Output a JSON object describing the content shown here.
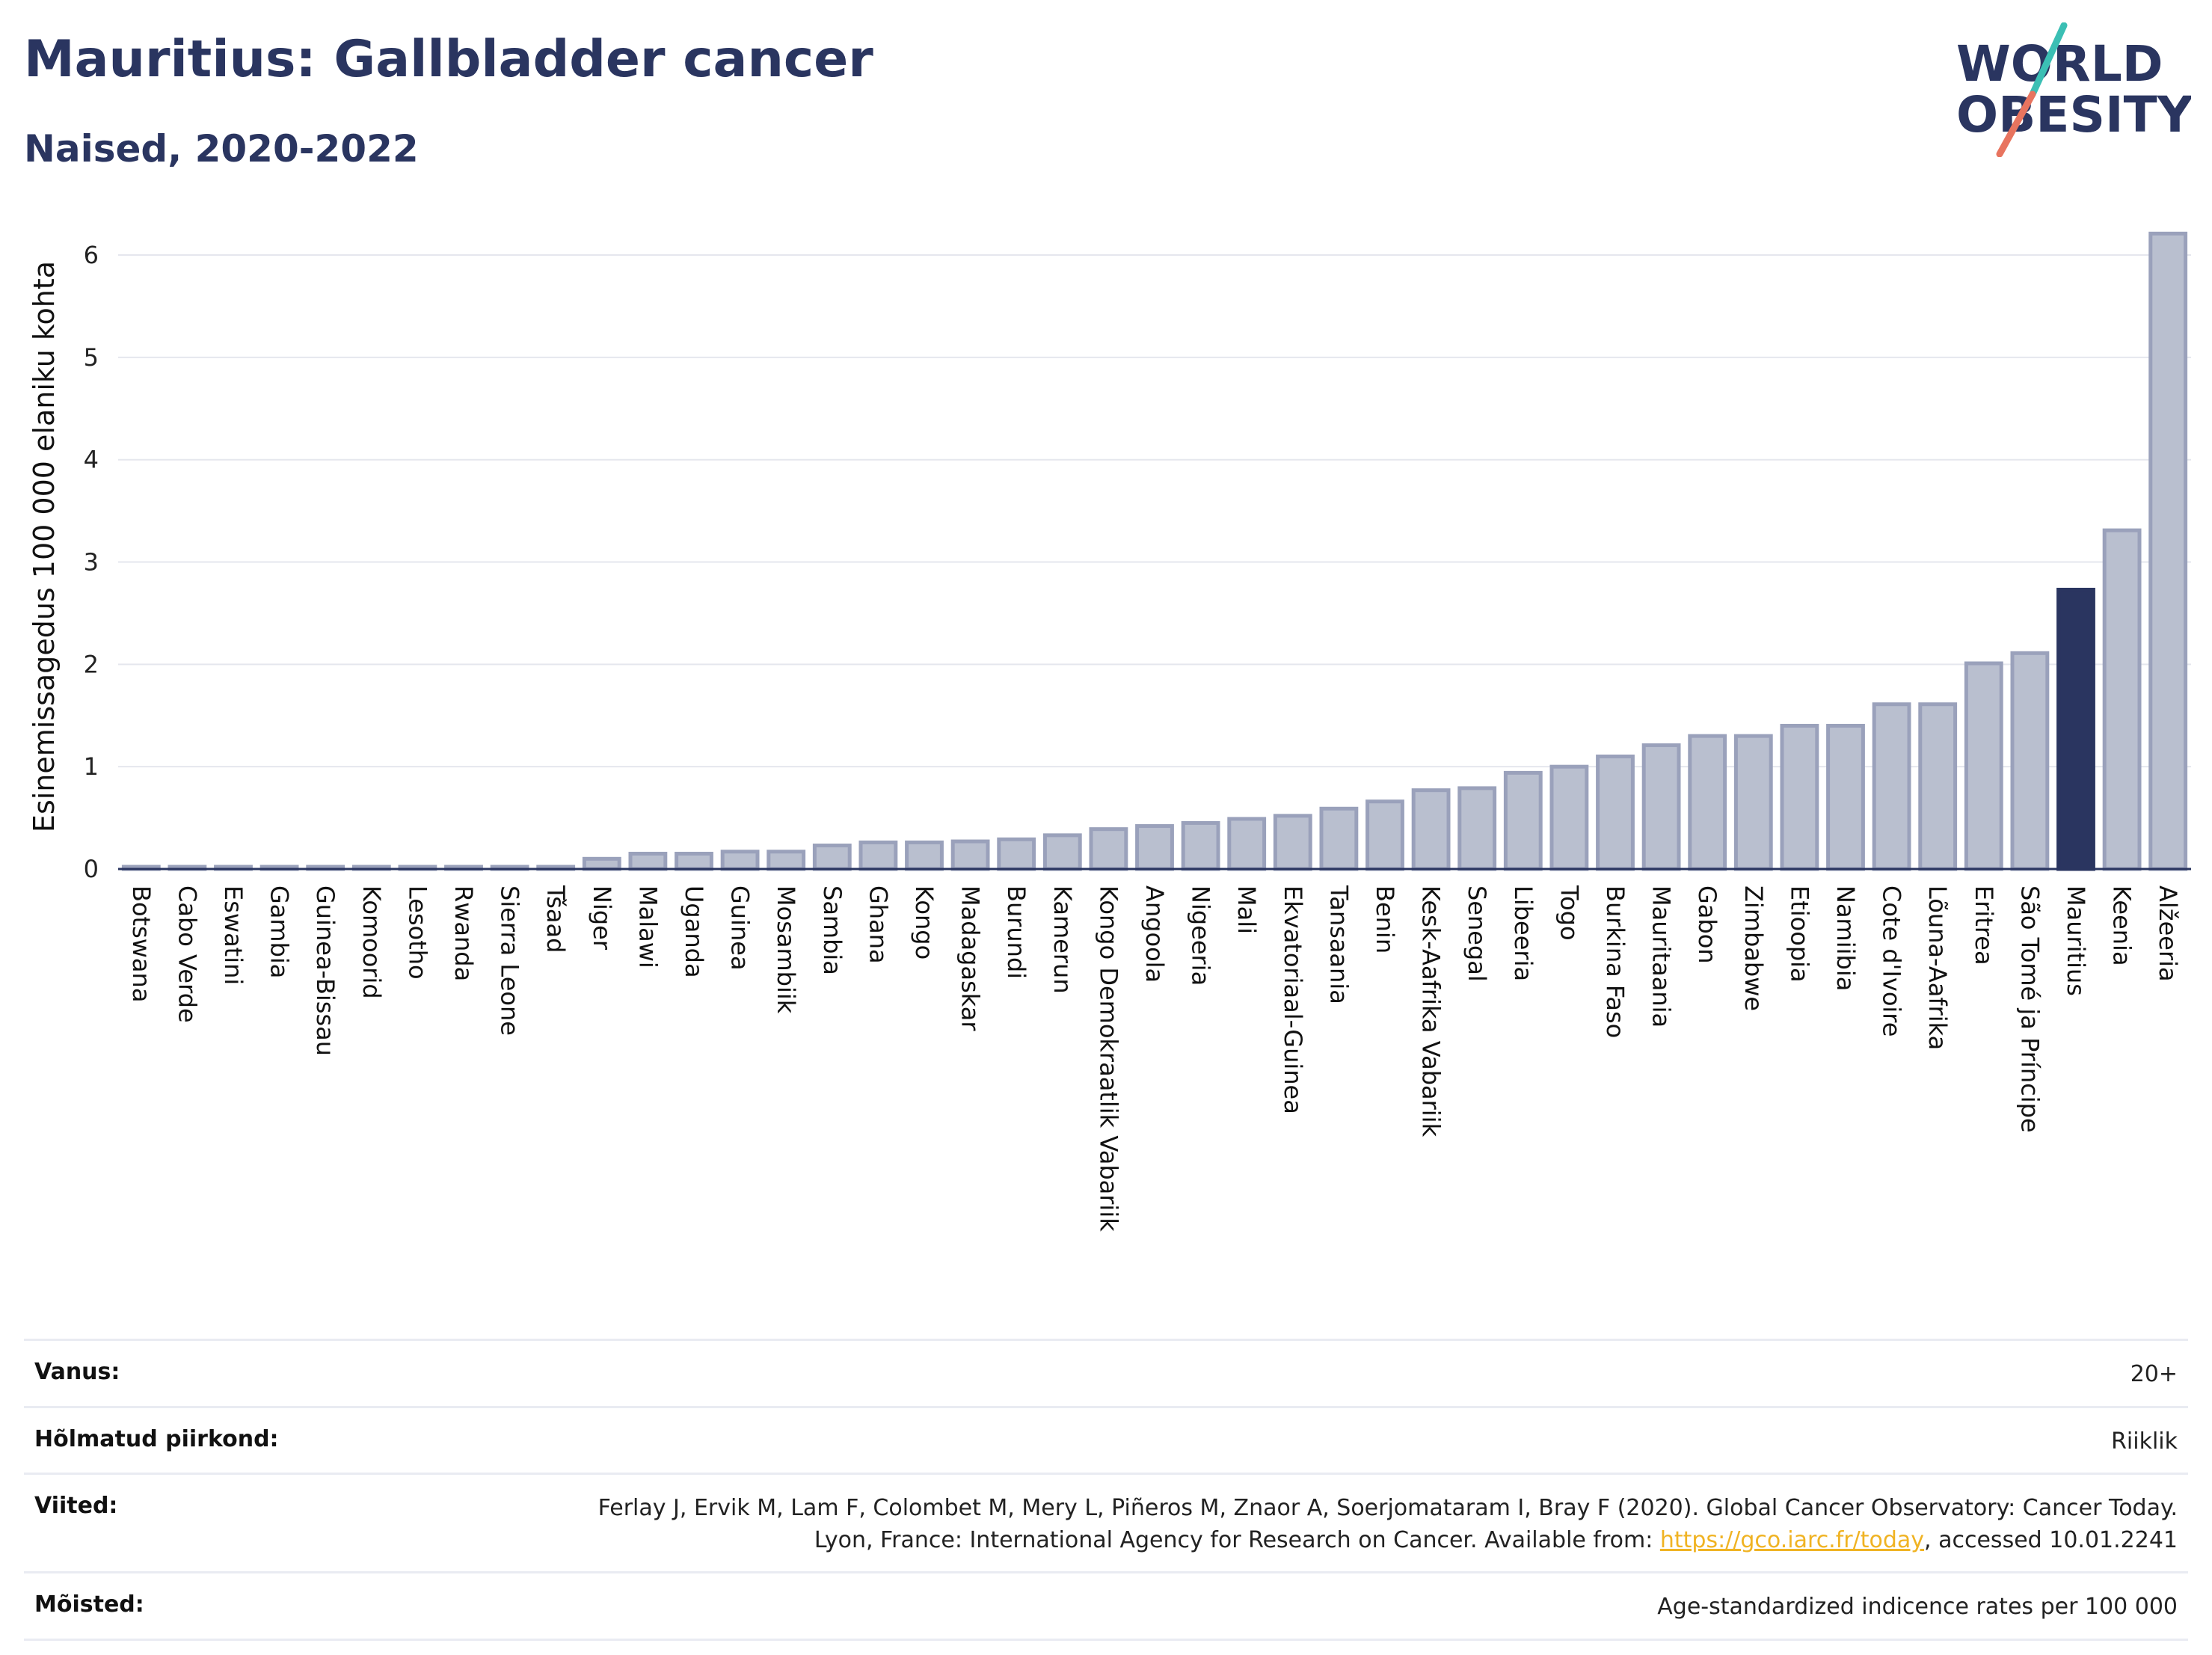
{
  "header": {
    "title": "Mauritius: Gallbladder cancer",
    "subtitle": "Naised, 2020-2022"
  },
  "logo": {
    "line1": "WORLD",
    "line2": "OBESITY",
    "colors": {
      "text": "#2a3560",
      "slash_top": "#3bbfb4",
      "slash_bottom": "#e8745f"
    }
  },
  "colors": {
    "bar_fill": "#b9bfcf",
    "bar_stroke": "#9aa1bb",
    "highlight": "#2a3560",
    "grid": "#e5e7ee",
    "axis": "#2a3560"
  },
  "chart_data": {
    "type": "bar",
    "ylabel": "Esinemissagedus 100 000 elaniku kohta",
    "xlabel": "",
    "ylim": [
      0,
      6.3
    ],
    "yticks": [
      0,
      1,
      2,
      3,
      4,
      5,
      6
    ],
    "grid": true,
    "highlight": "Mauritius",
    "categories": [
      "Botswana",
      "Cabo Verde",
      "Eswatini",
      "Gambia",
      "Guinea-Bissau",
      "Komoorid",
      "Lesotho",
      "Rwanda",
      "Sierra Leone",
      "Tšaad",
      "Niger",
      "Malawi",
      "Uganda",
      "Guinea",
      "Mosambiik",
      "Sambia",
      "Ghana",
      "Kongo",
      "Madagaskar",
      "Burundi",
      "Kamerun",
      "Kongo Demokraatlik Vabariik",
      "Angoola",
      "Nigeeria",
      "Mali",
      "Ekvatoriaal-Guinea",
      "Tansaania",
      "Benin",
      "Kesk-Aafrika Vabariik",
      "Senegal",
      "Libeeria",
      "Togo",
      "Burkina Faso",
      "Mauritaania",
      "Gabon",
      "Zimbabwe",
      "Etioopia",
      "Namiibia",
      "Cote d'Ivoire",
      "Lõuna-Aafrika",
      "Eritrea",
      "São Tomé ja Príncipe",
      "Mauritius",
      "Keenia",
      "Alžeeria"
    ],
    "values": [
      0.01,
      0.01,
      0.01,
      0.01,
      0.01,
      0.01,
      0.01,
      0.01,
      0.01,
      0.01,
      0.1,
      0.15,
      0.15,
      0.17,
      0.17,
      0.23,
      0.26,
      0.26,
      0.27,
      0.29,
      0.33,
      0.39,
      0.42,
      0.45,
      0.49,
      0.52,
      0.59,
      0.66,
      0.77,
      0.79,
      0.94,
      1.0,
      1.1,
      1.21,
      1.3,
      1.3,
      1.4,
      1.4,
      1.61,
      1.61,
      2.01,
      2.11,
      2.73,
      3.31,
      6.21
    ]
  },
  "info": {
    "age": {
      "label": "Vanus:",
      "value": "20+"
    },
    "regions": {
      "label": "Hõlmatud piirkond:",
      "value": "Riiklik"
    },
    "refs": {
      "label": "Viited:",
      "text_before": "Ferlay J, Ervik M, Lam F, Colombet M, Mery L, Piñeros M, Znaor A, Soerjomataram I, Bray F (2020). Global Cancer Observatory: Cancer Today. Lyon, France: International Agency for Research on Cancer. Available from: ",
      "link": "https://gco.iarc.fr/today",
      "text_after": ", accessed 10.01.2241"
    },
    "definitions": {
      "label": "Mõisted:",
      "value": "Age-standardized indicence rates per 100 000"
    }
  }
}
